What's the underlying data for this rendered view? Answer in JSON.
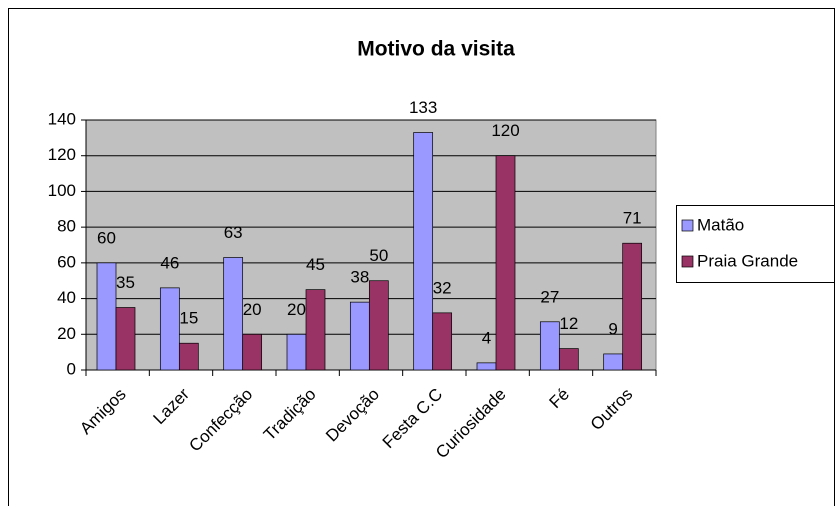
{
  "chart_data": {
    "type": "bar",
    "title": "Motivo da visita",
    "categories": [
      "Amigos",
      "Lazer",
      "Confecção",
      "Tradição",
      "Devoção",
      "Festa C.C",
      "Curiosidade",
      "Fé",
      "Outros"
    ],
    "series": [
      {
        "name": "Matão",
        "color": "#9999ff",
        "values": [
          60,
          46,
          63,
          20,
          38,
          133,
          4,
          27,
          9
        ]
      },
      {
        "name": "Praia Grande",
        "color": "#993366",
        "values": [
          35,
          15,
          20,
          45,
          50,
          32,
          120,
          12,
          71
        ]
      }
    ],
    "ylim": [
      0,
      140
    ],
    "yticks": [
      0,
      20,
      40,
      60,
      80,
      100,
      120,
      140
    ],
    "grid": true,
    "legend": "right"
  }
}
